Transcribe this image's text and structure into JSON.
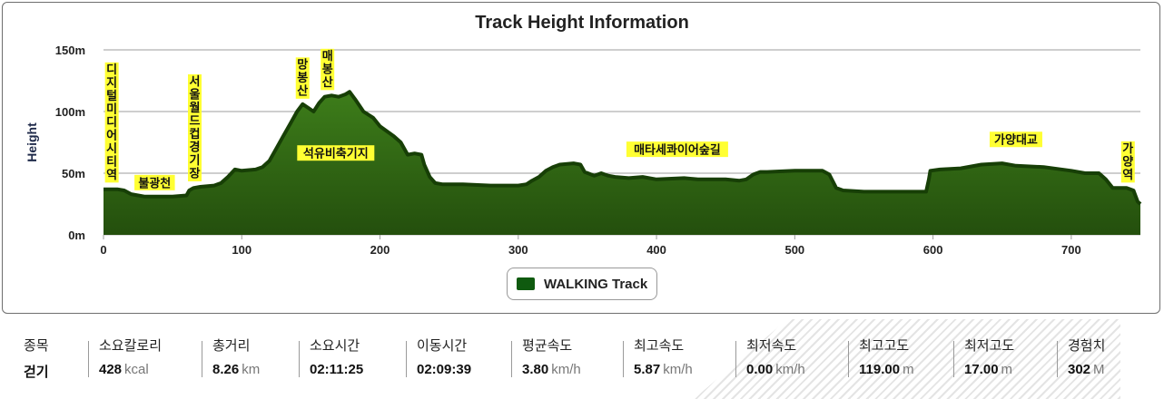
{
  "chart_data": {
    "type": "area",
    "title": "Track Height Information",
    "ylabel": "Height",
    "xlabel": "",
    "xlim": [
      0,
      750
    ],
    "ylim": [
      0,
      150
    ],
    "x_ticks": [
      "0",
      "100",
      "200",
      "300",
      "400",
      "500",
      "600",
      "700"
    ],
    "y_ticks": [
      "0m",
      "50m",
      "100m",
      "150m"
    ],
    "grid": true,
    "legend_position": "bottom-center",
    "series": [
      {
        "name": "WALKING Track",
        "color": "#2f6b12",
        "points": [
          [
            0,
            37
          ],
          [
            10,
            37
          ],
          [
            15,
            36
          ],
          [
            20,
            33
          ],
          [
            25,
            32
          ],
          [
            30,
            31
          ],
          [
            40,
            31
          ],
          [
            50,
            31
          ],
          [
            60,
            32
          ],
          [
            62,
            36
          ],
          [
            65,
            38
          ],
          [
            70,
            39
          ],
          [
            80,
            40
          ],
          [
            85,
            42
          ],
          [
            90,
            47
          ],
          [
            95,
            53
          ],
          [
            100,
            52
          ],
          [
            110,
            53
          ],
          [
            115,
            55
          ],
          [
            120,
            60
          ],
          [
            125,
            70
          ],
          [
            130,
            80
          ],
          [
            135,
            90
          ],
          [
            140,
            100
          ],
          [
            144,
            106
          ],
          [
            148,
            103
          ],
          [
            152,
            100
          ],
          [
            156,
            107
          ],
          [
            160,
            112
          ],
          [
            165,
            113
          ],
          [
            170,
            112
          ],
          [
            175,
            114
          ],
          [
            178,
            116
          ],
          [
            182,
            110
          ],
          [
            188,
            100
          ],
          [
            195,
            95
          ],
          [
            200,
            88
          ],
          [
            210,
            80
          ],
          [
            215,
            75
          ],
          [
            220,
            65
          ],
          [
            225,
            66
          ],
          [
            230,
            65
          ],
          [
            232,
            57
          ],
          [
            236,
            47
          ],
          [
            240,
            42
          ],
          [
            245,
            41
          ],
          [
            260,
            41
          ],
          [
            280,
            40
          ],
          [
            300,
            40
          ],
          [
            306,
            41
          ],
          [
            310,
            44
          ],
          [
            315,
            47
          ],
          [
            320,
            52
          ],
          [
            325,
            55
          ],
          [
            330,
            57
          ],
          [
            340,
            58
          ],
          [
            345,
            57
          ],
          [
            348,
            51
          ],
          [
            355,
            48
          ],
          [
            360,
            50
          ],
          [
            365,
            48
          ],
          [
            370,
            47
          ],
          [
            380,
            46
          ],
          [
            390,
            47
          ],
          [
            400,
            45
          ],
          [
            420,
            46
          ],
          [
            430,
            45
          ],
          [
            450,
            45
          ],
          [
            460,
            44
          ],
          [
            465,
            45
          ],
          [
            470,
            49
          ],
          [
            475,
            51
          ],
          [
            480,
            51
          ],
          [
            500,
            52
          ],
          [
            520,
            52
          ],
          [
            525,
            49
          ],
          [
            530,
            38
          ],
          [
            535,
            36
          ],
          [
            550,
            35
          ],
          [
            560,
            35
          ],
          [
            580,
            35
          ],
          [
            595,
            35
          ],
          [
            597,
            45
          ],
          [
            598,
            52
          ],
          [
            605,
            53
          ],
          [
            620,
            54
          ],
          [
            635,
            57
          ],
          [
            650,
            58
          ],
          [
            660,
            56
          ],
          [
            680,
            55
          ],
          [
            700,
            52
          ],
          [
            710,
            50
          ],
          [
            720,
            50
          ],
          [
            725,
            45
          ],
          [
            730,
            38
          ],
          [
            740,
            38
          ],
          [
            745,
            36
          ],
          [
            748,
            27
          ],
          [
            750,
            25
          ]
        ]
      }
    ],
    "annotations": [
      {
        "x": 6,
        "y": 38,
        "text": "디지털미디어시티역"
      },
      {
        "x": 37,
        "y": 31,
        "text": "불광천"
      },
      {
        "x": 66,
        "y": 39,
        "text": "서울월드컵경기장"
      },
      {
        "x": 144,
        "y": 106,
        "text": "망봉산"
      },
      {
        "x": 162,
        "y": 113,
        "text": "매봉산"
      },
      {
        "x": 168,
        "y": 55,
        "text": "석유비축기지"
      },
      {
        "x": 415,
        "y": 58,
        "text": "매타세콰이어숲길"
      },
      {
        "x": 660,
        "y": 66,
        "text": "가양대교"
      },
      {
        "x": 741,
        "y": 38,
        "text": "가양역"
      }
    ]
  },
  "legend": {
    "label": "WALKING Track"
  },
  "stats": [
    {
      "label": "종목",
      "value": "걷기",
      "unit": ""
    },
    {
      "label": "소요칼로리",
      "value": "428",
      "unit": "kcal"
    },
    {
      "label": "총거리",
      "value": "8.26",
      "unit": "km"
    },
    {
      "label": "소요시간",
      "value": "02:11:25",
      "unit": ""
    },
    {
      "label": "이동시간",
      "value": "02:09:39",
      "unit": ""
    },
    {
      "label": "평균속도",
      "value": "3.80",
      "unit": "km/h"
    },
    {
      "label": "최고속도",
      "value": "5.87",
      "unit": "km/h"
    },
    {
      "label": "최저속도",
      "value": "0.00",
      "unit": "km/h"
    },
    {
      "label": "최고고도",
      "value": "119.00",
      "unit": "m"
    },
    {
      "label": "최저고도",
      "value": "17.00",
      "unit": "m"
    },
    {
      "label": "경험치",
      "value": "302",
      "unit": "M"
    }
  ]
}
